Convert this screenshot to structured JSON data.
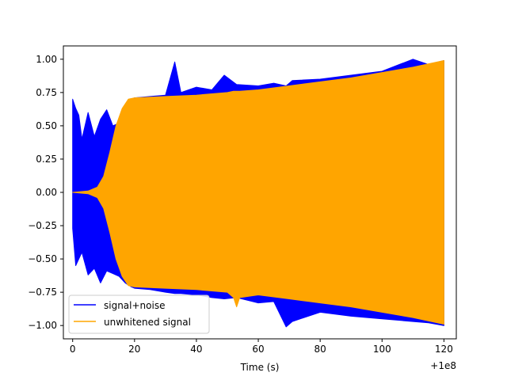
{
  "chart_data": {
    "type": "line",
    "title": "",
    "xlabel": "Time (s)",
    "ylabel": "",
    "x_offset_label": "+1e8",
    "xlim": [
      -3,
      124
    ],
    "ylim": [
      -1.1,
      1.1
    ],
    "xticks": [
      0,
      20,
      40,
      60,
      80,
      100,
      120
    ],
    "xtick_labels": [
      "0",
      "20",
      "40",
      "60",
      "80",
      "100",
      "120"
    ],
    "yticks": [
      -1.0,
      -0.75,
      -0.5,
      -0.25,
      0.0,
      0.25,
      0.5,
      0.75,
      1.0
    ],
    "ytick_labels": [
      "−1.00",
      "−0.75",
      "−0.50",
      "−0.25",
      "0.00",
      "0.25",
      "0.50",
      "0.75",
      "1.00"
    ],
    "grid": false,
    "legend_position": "lower-left",
    "series": [
      {
        "name": "signal+noise",
        "color": "#0000ff",
        "kind": "envelope",
        "x": [
          0,
          1,
          2,
          3,
          5,
          7,
          9,
          11,
          13,
          15,
          17,
          19,
          20,
          25,
          30,
          33,
          35,
          40,
          45,
          49,
          53,
          60,
          65,
          69,
          71,
          80,
          90,
          100,
          110,
          115,
          120
        ],
        "upper": [
          0.7,
          0.63,
          0.58,
          0.4,
          0.6,
          0.42,
          0.55,
          0.62,
          0.5,
          0.52,
          0.66,
          0.7,
          0.71,
          0.72,
          0.73,
          0.98,
          0.75,
          0.79,
          0.77,
          0.88,
          0.81,
          0.8,
          0.82,
          0.8,
          0.84,
          0.85,
          0.88,
          0.91,
          1.0,
          0.96,
          0.99
        ],
        "lower": [
          -0.27,
          -0.55,
          -0.5,
          -0.45,
          -0.62,
          -0.57,
          -0.68,
          -0.59,
          -0.61,
          -0.63,
          -0.68,
          -0.71,
          -0.72,
          -0.73,
          -0.75,
          -0.76,
          -0.76,
          -0.77,
          -0.79,
          -0.8,
          -0.79,
          -0.83,
          -0.82,
          -1.01,
          -0.97,
          -0.9,
          -0.93,
          -0.95,
          -0.97,
          -0.98,
          -1.0
        ]
      },
      {
        "name": "unwhitened signal",
        "color": "#ffa500",
        "kind": "envelope",
        "x": [
          0,
          5,
          8,
          10,
          12,
          14,
          16,
          18,
          20,
          30,
          40,
          50,
          52,
          53,
          54,
          60,
          70,
          80,
          90,
          100,
          110,
          120
        ],
        "upper": [
          0.0,
          0.01,
          0.04,
          0.12,
          0.3,
          0.5,
          0.63,
          0.7,
          0.71,
          0.72,
          0.73,
          0.75,
          0.76,
          0.76,
          0.76,
          0.77,
          0.8,
          0.83,
          0.86,
          0.9,
          0.94,
          0.99
        ],
        "lower": [
          0.0,
          -0.01,
          -0.04,
          -0.12,
          -0.3,
          -0.5,
          -0.63,
          -0.7,
          -0.71,
          -0.72,
          -0.73,
          -0.75,
          -0.79,
          -0.86,
          -0.79,
          -0.77,
          -0.8,
          -0.83,
          -0.86,
          -0.9,
          -0.94,
          -0.99
        ]
      }
    ]
  }
}
